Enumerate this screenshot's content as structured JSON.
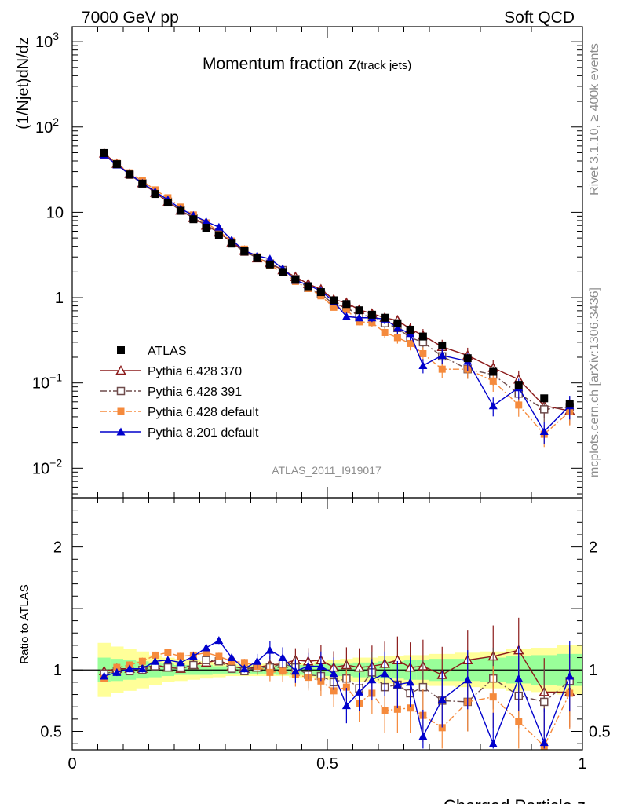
{
  "header": {
    "left": "7000 GeV pp",
    "right": "Soft QCD"
  },
  "side": {
    "top": "Rivet 3.1.10, ≥ 400k events",
    "bottom": "mcplots.cern.ch [arXiv:1306.3436]"
  },
  "chart_data": [
    {
      "type": "line",
      "title": "Momentum fraction",
      "title_var": "z",
      "title_sub": "(track jets)",
      "watermark": "ATLAS_2011_I919017",
      "ylabel": "(1/Njet)dN/dz",
      "xlim": [
        0,
        1
      ],
      "ylim": [
        0.0045,
        1500
      ],
      "yscale": "log",
      "yticks": [
        {
          "v": 1000,
          "b": "10",
          "e": "3"
        },
        {
          "v": 100,
          "b": "10",
          "e": "2"
        },
        {
          "v": 10,
          "b": "10",
          "e": ""
        },
        {
          "v": 1,
          "b": "1",
          "e": ""
        },
        {
          "v": 0.1,
          "b": "10",
          "e": "−1"
        },
        {
          "v": 0.01,
          "b": "10",
          "e": "−2"
        }
      ],
      "legend_position": "bottom-left",
      "x": [
        0.0625,
        0.0875,
        0.1125,
        0.1375,
        0.1625,
        0.1875,
        0.2125,
        0.2375,
        0.2625,
        0.2875,
        0.3125,
        0.3375,
        0.3625,
        0.3875,
        0.4125,
        0.4375,
        0.4625,
        0.4875,
        0.5125,
        0.5375,
        0.5625,
        0.5875,
        0.6125,
        0.6375,
        0.6625,
        0.6875,
        0.725,
        0.775,
        0.825,
        0.875,
        0.925,
        0.975
      ],
      "series": [
        {
          "name": "ATLAS",
          "color": "#000000",
          "marker": "square-filled",
          "values": [
            49.5,
            36.7,
            27.8,
            21.7,
            16.4,
            13.0,
            10.4,
            8.3,
            6.6,
            5.4,
            4.3,
            3.5,
            2.9,
            2.45,
            2.0,
            1.62,
            1.36,
            1.16,
            0.93,
            0.84,
            0.71,
            0.63,
            0.58,
            0.5,
            0.42,
            0.35,
            0.275,
            0.195,
            0.135,
            0.095,
            0.066,
            0.057
          ]
        },
        {
          "name": "Pythia 6.428 370",
          "color": "#8b1a1a",
          "marker": "triangle-open",
          "line": "solid",
          "values": [
            49,
            37,
            28.2,
            22.0,
            17.0,
            13.3,
            10.5,
            8.6,
            7.0,
            5.8,
            4.45,
            3.55,
            2.9,
            2.55,
            2.1,
            1.75,
            1.45,
            1.25,
            0.95,
            0.87,
            0.72,
            0.65,
            0.58,
            0.54,
            0.43,
            0.36,
            0.265,
            0.21,
            0.15,
            0.11,
            0.054,
            0.047
          ]
        },
        {
          "name": "Pythia 6.428 391",
          "color": "#6e4b4b",
          "marker": "square-open",
          "line": "dashdot",
          "values": [
            48,
            36.5,
            27.5,
            21.8,
            16.9,
            13.3,
            10.6,
            8.6,
            7.1,
            5.8,
            4.35,
            3.45,
            2.95,
            2.5,
            2.1,
            1.65,
            1.3,
            1.1,
            0.84,
            0.78,
            0.6,
            0.62,
            0.5,
            0.44,
            0.34,
            0.3,
            0.205,
            0.145,
            0.125,
            0.075,
            0.049,
            0.052
          ]
        },
        {
          "name": "Pythia 6.428 default",
          "color": "#f58a3c",
          "marker": "square-filled",
          "line": "dashdot",
          "values": [
            46,
            37.5,
            29,
            23.3,
            18.3,
            14.8,
            11.5,
            9.3,
            7.5,
            6.0,
            4.6,
            3.7,
            3.0,
            2.4,
            1.98,
            1.55,
            1.28,
            1.05,
            0.77,
            0.72,
            0.52,
            0.51,
            0.39,
            0.34,
            0.29,
            0.22,
            0.145,
            0.145,
            0.105,
            0.055,
            0.025,
            0.046
          ]
        },
        {
          "name": "Pythia 8.201 default",
          "color": "#0000cc",
          "marker": "triangle-filled",
          "line": "solid",
          "values": [
            47,
            36,
            28,
            22,
            17.5,
            14.0,
            11.0,
            9.2,
            7.8,
            6.7,
            4.75,
            3.55,
            3.1,
            2.85,
            2.2,
            1.6,
            1.4,
            1.2,
            0.9,
            0.6,
            0.58,
            0.58,
            0.56,
            0.44,
            0.38,
            0.16,
            0.21,
            0.18,
            0.054,
            0.088,
            0.027,
            0.054
          ]
        }
      ]
    },
    {
      "type": "line",
      "ylabel": "Ratio to ATLAS",
      "xlabel": "Charged Particle z",
      "xlim": [
        0,
        1
      ],
      "ylim": [
        0.35,
        2.4
      ],
      "yticks": [
        0.5,
        1,
        2
      ],
      "xticks": [
        {
          "v": 0,
          "label": "0"
        },
        {
          "v": 0.5,
          "label": "0.5"
        },
        {
          "v": 1,
          "label": "1"
        }
      ],
      "bands": {
        "stat_color": "#99ff99",
        "syst_color": "#ffff99",
        "yellow_half": [
          0.22,
          0.19,
          0.17,
          0.15,
          0.12,
          0.1,
          0.09,
          0.08,
          0.07,
          0.06,
          0.05,
          0.05,
          0.05,
          0.05,
          0.05,
          0.06,
          0.06,
          0.07,
          0.08,
          0.09,
          0.1,
          0.1,
          0.11,
          0.11,
          0.12,
          0.12,
          0.13,
          0.14,
          0.15,
          0.17,
          0.18,
          0.2
        ],
        "green_half": [
          0.1,
          0.09,
          0.08,
          0.07,
          0.06,
          0.05,
          0.04,
          0.04,
          0.04,
          0.03,
          0.03,
          0.03,
          0.03,
          0.03,
          0.04,
          0.04,
          0.04,
          0.05,
          0.05,
          0.05,
          0.06,
          0.06,
          0.07,
          0.07,
          0.08,
          0.08,
          0.09,
          0.09,
          0.1,
          0.11,
          0.12,
          0.13
        ]
      },
      "series": [
        {
          "name": "Pythia 6.428 370",
          "values": [
            0.99,
            1.01,
            1.01,
            1.01,
            1.04,
            1.02,
            1.01,
            1.04,
            1.06,
            1.08,
            1.03,
            1.01,
            1.02,
            1.04,
            1.05,
            1.08,
            1.07,
            1.08,
            1.02,
            1.04,
            1.02,
            1.03,
            1.05,
            1.08,
            1.02,
            1.03,
            0.96,
            1.08,
            1.11,
            1.16,
            0.82,
            0.82
          ]
        },
        {
          "name": "Pythia 6.428 391",
          "values": [
            0.97,
            0.99,
            0.99,
            1.0,
            1.03,
            1.02,
            1.02,
            1.04,
            1.08,
            1.07,
            1.01,
            0.99,
            1.02,
            1.02,
            1.05,
            1.02,
            0.96,
            0.95,
            0.9,
            0.93,
            0.85,
            0.98,
            0.86,
            0.88,
            0.81,
            0.86,
            0.75,
            0.74,
            0.93,
            0.79,
            0.74,
            0.91
          ]
        },
        {
          "name": "Pythia 6.428 default",
          "values": [
            0.93,
            1.02,
            1.04,
            1.07,
            1.12,
            1.14,
            1.11,
            1.12,
            1.14,
            1.11,
            1.07,
            1.06,
            1.03,
            0.98,
            0.99,
            0.96,
            0.94,
            0.91,
            0.83,
            0.86,
            0.73,
            0.81,
            0.67,
            0.68,
            0.69,
            0.63,
            0.53,
            0.74,
            0.78,
            0.58,
            0.38,
            0.81
          ]
        },
        {
          "name": "Pythia 8.201 default",
          "values": [
            0.95,
            0.98,
            1.01,
            1.01,
            1.07,
            1.08,
            1.06,
            1.11,
            1.18,
            1.24,
            1.1,
            1.01,
            1.07,
            1.16,
            1.1,
            0.99,
            1.03,
            1.03,
            0.97,
            0.71,
            0.82,
            0.92,
            0.97,
            0.88,
            0.9,
            0.46,
            0.76,
            0.92,
            0.4,
            0.93,
            0.41,
            0.95
          ]
        }
      ]
    }
  ]
}
